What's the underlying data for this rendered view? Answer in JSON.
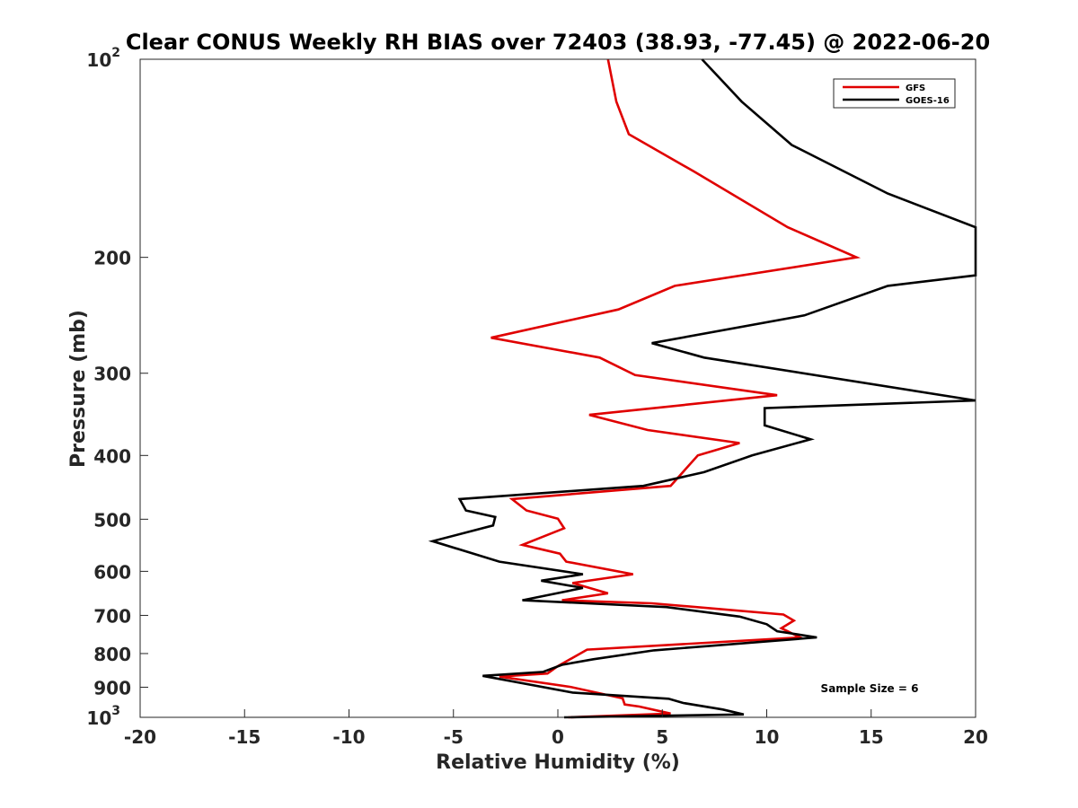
{
  "chart_data": {
    "type": "line",
    "title": "Clear CONUS Weekly RH BIAS over 72403 (38.93, -77.45) @ 2022-06-20",
    "xlabel": "Relative Humidity (%)",
    "ylabel": "Pressure (mb)",
    "xlim": [
      -20,
      20
    ],
    "ylim": [
      100,
      1000
    ],
    "y_scale": "log",
    "y_reversed": true,
    "x_ticks": [
      "-20",
      "-15",
      "-10",
      "-5",
      "0",
      "5",
      "10",
      "15",
      "20"
    ],
    "y_ticks": [
      {
        "value": 100,
        "base": "10",
        "exp": "2"
      },
      {
        "value": 200,
        "base": "200",
        "exp": ""
      },
      {
        "value": 300,
        "base": "300",
        "exp": ""
      },
      {
        "value": 400,
        "base": "400",
        "exp": ""
      },
      {
        "value": 500,
        "base": "500",
        "exp": ""
      },
      {
        "value": 600,
        "base": "600",
        "exp": ""
      },
      {
        "value": 700,
        "base": "700",
        "exp": ""
      },
      {
        "value": 800,
        "base": "800",
        "exp": ""
      },
      {
        "value": 900,
        "base": "900",
        "exp": ""
      },
      {
        "value": 1000,
        "base": "10",
        "exp": "3"
      }
    ],
    "grid": false,
    "legend_position": "top-right",
    "annotation": "Sample Size = 6",
    "series": [
      {
        "name": "GFS",
        "color": "#e00000",
        "points": [
          [
            2.4,
            100
          ],
          [
            2.8,
            116
          ],
          [
            3.4,
            130
          ],
          [
            6.5,
            148
          ],
          [
            11.0,
            180
          ],
          [
            14.3,
            200
          ],
          [
            5.6,
            221
          ],
          [
            2.9,
            240
          ],
          [
            -3.2,
            265
          ],
          [
            2.0,
            284
          ],
          [
            3.7,
            302
          ],
          [
            10.5,
            324
          ],
          [
            1.5,
            347
          ],
          [
            4.3,
            366
          ],
          [
            8.7,
            383
          ],
          [
            6.7,
            400
          ],
          [
            5.4,
            445
          ],
          [
            -2.2,
            466
          ],
          [
            -1.5,
            485
          ],
          [
            0.0,
            499
          ],
          [
            0.3,
            516
          ],
          [
            -1.7,
            547
          ],
          [
            0.1,
            564
          ],
          [
            0.4,
            580
          ],
          [
            3.6,
            606
          ],
          [
            0.7,
            625
          ],
          [
            2.4,
            648
          ],
          [
            0.2,
            664
          ],
          [
            4.5,
            671
          ],
          [
            10.8,
            698
          ],
          [
            11.3,
            713
          ],
          [
            10.7,
            732
          ],
          [
            11.6,
            756
          ],
          [
            1.4,
            789
          ],
          [
            0.0,
            836
          ],
          [
            -0.5,
            858
          ],
          [
            -2.8,
            867
          ],
          [
            0.6,
            899
          ],
          [
            3.1,
            936
          ],
          [
            3.2,
            956
          ],
          [
            3.9,
            963
          ],
          [
            5.4,
            987
          ],
          [
            0.5,
            1000
          ]
        ]
      },
      {
        "name": "GOES-16",
        "color": "#000000",
        "points": [
          [
            6.9,
            100
          ],
          [
            8.8,
            116
          ],
          [
            11.2,
            135
          ],
          [
            15.8,
            160
          ],
          [
            20.0,
            180
          ],
          [
            20.0,
            213
          ],
          [
            15.8,
            221
          ],
          [
            11.8,
            245
          ],
          [
            4.5,
            270
          ],
          [
            7.0,
            284
          ],
          [
            20.0,
            330
          ],
          [
            9.9,
            339
          ],
          [
            9.9,
            360
          ],
          [
            12.1,
            378
          ],
          [
            9.3,
            400
          ],
          [
            7.0,
            424
          ],
          [
            4.1,
            445
          ],
          [
            -4.7,
            466
          ],
          [
            -4.4,
            485
          ],
          [
            -3.0,
            496
          ],
          [
            -3.1,
            511
          ],
          [
            -6.0,
            540
          ],
          [
            -2.8,
            580
          ],
          [
            1.2,
            606
          ],
          [
            -0.8,
            620
          ],
          [
            1.2,
            636
          ],
          [
            -1.7,
            664
          ],
          [
            5.2,
            680
          ],
          [
            8.7,
            703
          ],
          [
            10.0,
            722
          ],
          [
            10.5,
            740
          ],
          [
            12.4,
            756
          ],
          [
            4.6,
            791
          ],
          [
            1.7,
            816
          ],
          [
            0.2,
            832
          ],
          [
            -0.7,
            853
          ],
          [
            -3.6,
            865
          ],
          [
            0.7,
            917
          ],
          [
            5.3,
            937
          ],
          [
            6.0,
            951
          ],
          [
            7.9,
            973
          ],
          [
            8.9,
            990
          ],
          [
            0.3,
            1000
          ]
        ]
      }
    ]
  }
}
